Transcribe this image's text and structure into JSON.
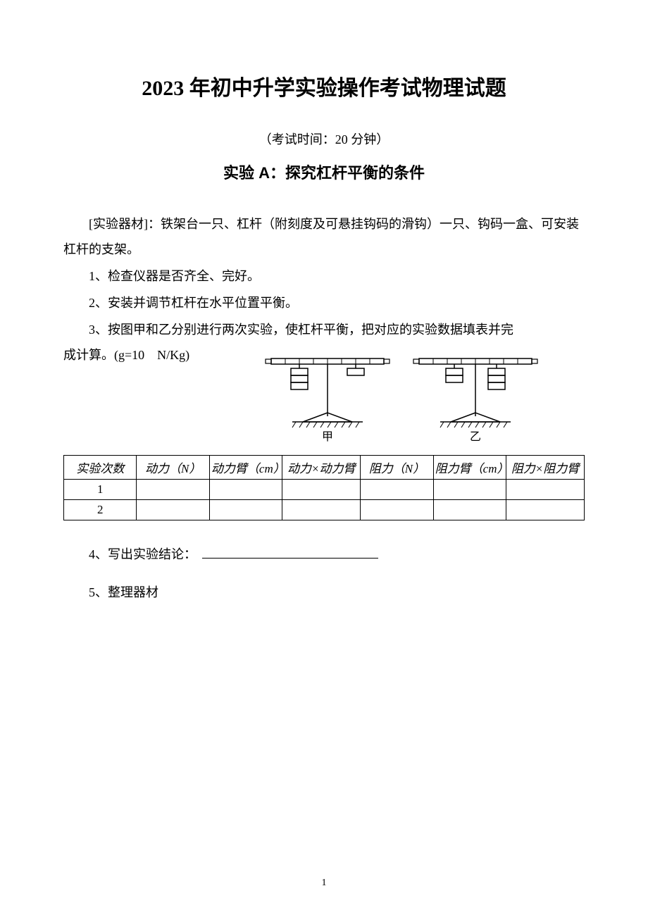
{
  "title": "2023 年初中升学实验操作考试物理试题",
  "exam_time": "（考试时间：20 分钟）",
  "subtitle": "实验 A：探究杠杆平衡的条件",
  "materials": "[实验器材]：铁架台一只、杠杆（附刻度及可悬挂钩码的滑钩）一只、钩码一盒、可安装杠杆的支架。",
  "item1": "1、检查仪器是否齐全、完好。",
  "item2": "2、安装并调节杠杆在水平位置平衡。",
  "item3_line1": "3、按图甲和乙分别进行两次实验，使杠杆平衡，把对应的实验数据填表并完",
  "item3_line2": "成计算。(g=10 N/Kg)",
  "diagram": {
    "label_left": "甲",
    "label_right": "乙"
  },
  "table": {
    "headers": [
      "实验次数",
      "动力（N）",
      "动力臂（cm）",
      "动力×动力臂",
      "阻力（N）",
      "阻力臂（cm）",
      "阻力×阻力臂"
    ],
    "rows": [
      [
        "1",
        "",
        "",
        "",
        "",
        "",
        ""
      ],
      [
        "2",
        "",
        "",
        "",
        "",
        "",
        ""
      ]
    ],
    "col_widths": [
      "14%",
      "14%",
      "14%",
      "15%",
      "14%",
      "14%",
      "15%"
    ]
  },
  "item4": "4、写出实验结论：",
  "item5": "5、整理器材",
  "page_number": "1",
  "colors": {
    "background": "#ffffff",
    "text": "#000000",
    "border": "#000000"
  }
}
